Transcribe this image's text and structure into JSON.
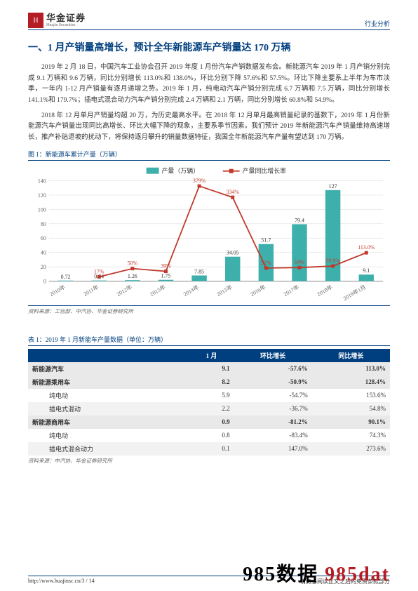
{
  "header": {
    "logo_cn": "华金证券",
    "logo_en": "Huajin Securities",
    "category": "行业分析"
  },
  "title": "一、1 月产销量高增长，预计全年新能源车产销量达 170 万辆",
  "paragraphs": [
    "2019 年 2 月 18 日，中国汽车工业协会召开 2019 年度 1 月份汽车产销数据发布会。新能源汽车 2019 年 1 月产销分别完成 9.1 万辆和 9.6 万辆，同比分别增长 113.0%和 138.0%，环比分别下降 57.6%和 57.5%。环比下降主要系上半年为车市淡季，一年内 1-12 月产销量有逐月递增之势。2019 年 1 月，纯电动汽车产销分别完成 6.7 万辆和 7.5 万辆，同比分别增长 141.1%和 179.7%；插电式混合动力汽车产销分别完成 2.4 万辆和 2.1 万辆，同比分别增长 60.8%和 54.9%。",
    "2018 年 12 月单月产销量均超 20 万，为历史最高水平。在 2018 年 12 月单月最高销量纪录的基数下，2019 年 1 月份新能源汽车产销量出现同比高增长、环比大幅下降的现象，主要系季节因素。我们预计 2019 年新能源汽车产销量维持高速增长，推产补贴退坡的扰动下，将保持逐月攀升的销量数据特征，我国全年新能源汽车产量有望达到 170 万辆。"
  ],
  "figure": {
    "caption": "图 1：新能源车累计产量（万辆）",
    "source": "资料来源：工信部、中汽协、华金证券研究所",
    "legend_bar": "产量（万辆）",
    "legend_line": "产量同比增长率",
    "categories": [
      "2010年",
      "2011年",
      "2012年",
      "2013年",
      "2014年",
      "2015年",
      "2016年",
      "2017年",
      "2018年",
      "2019年1月"
    ],
    "bar_values": [
      0.72,
      0.84,
      1.26,
      1.75,
      7.85,
      34.05,
      51.7,
      79.4,
      127,
      9.1
    ],
    "bar_labels": [
      "0.72",
      "0.84",
      "1.26",
      "1.75",
      "7.85",
      "34.05",
      "51.7",
      "79.4",
      "127",
      "9.1"
    ],
    "line_values_pct": [
      null,
      17,
      50,
      39,
      379,
      334,
      52,
      54,
      59.9,
      113.0
    ],
    "line_labels": [
      "",
      "17%",
      "50%",
      "39%",
      "379%",
      "334%",
      "52%",
      "54%",
      "59.9%",
      "113.0%"
    ],
    "y_max": 140,
    "y_ticks": [
      0,
      20,
      40,
      60,
      80,
      100,
      120,
      140
    ],
    "bar_color": "#3eb0ac",
    "line_color": "#c0392b",
    "grid_color": "#d9d9d9",
    "axis_color": "#666666",
    "label_fontsize": 8,
    "legend_fontsize": 9
  },
  "table": {
    "caption": "表 1：2019 年 1 月新能车产量数据（单位：万辆）",
    "source": "资料来源：中汽协、华金证券研究所",
    "columns": [
      "",
      "1 月",
      "环比增长",
      "同比增长"
    ],
    "rows": [
      {
        "style": "bold",
        "cells": [
          "新能源汽车",
          "9.1",
          "-57.6%",
          "113.0%"
        ]
      },
      {
        "style": "bold",
        "cells": [
          "新能源乘用车",
          "8.2",
          "-50.9%",
          "128.4%"
        ]
      },
      {
        "style": "plain",
        "cells": [
          "纯电动",
          "5.9",
          "-54.7%",
          "153.6%"
        ]
      },
      {
        "style": "alt",
        "cells": [
          "插电式混动",
          "2.2",
          "-36.7%",
          "54.8%"
        ]
      },
      {
        "style": "bold",
        "cells": [
          "新能源商用车",
          "0.9",
          "-81.2%",
          "90.1%"
        ]
      },
      {
        "style": "plain",
        "cells": [
          "纯电动",
          "0.8",
          "-83.4%",
          "74.3%"
        ]
      },
      {
        "style": "alt",
        "cells": [
          "插电式混合动力",
          "0.1",
          "147.0%",
          "273.6%"
        ]
      }
    ]
  },
  "footer": {
    "left": "http://www.huajinsc.cn/3 / 14",
    "right": "请务必阅读正文之后的免责条款部分"
  },
  "watermark": {
    "a": "985数据 ",
    "b": "985dat"
  }
}
